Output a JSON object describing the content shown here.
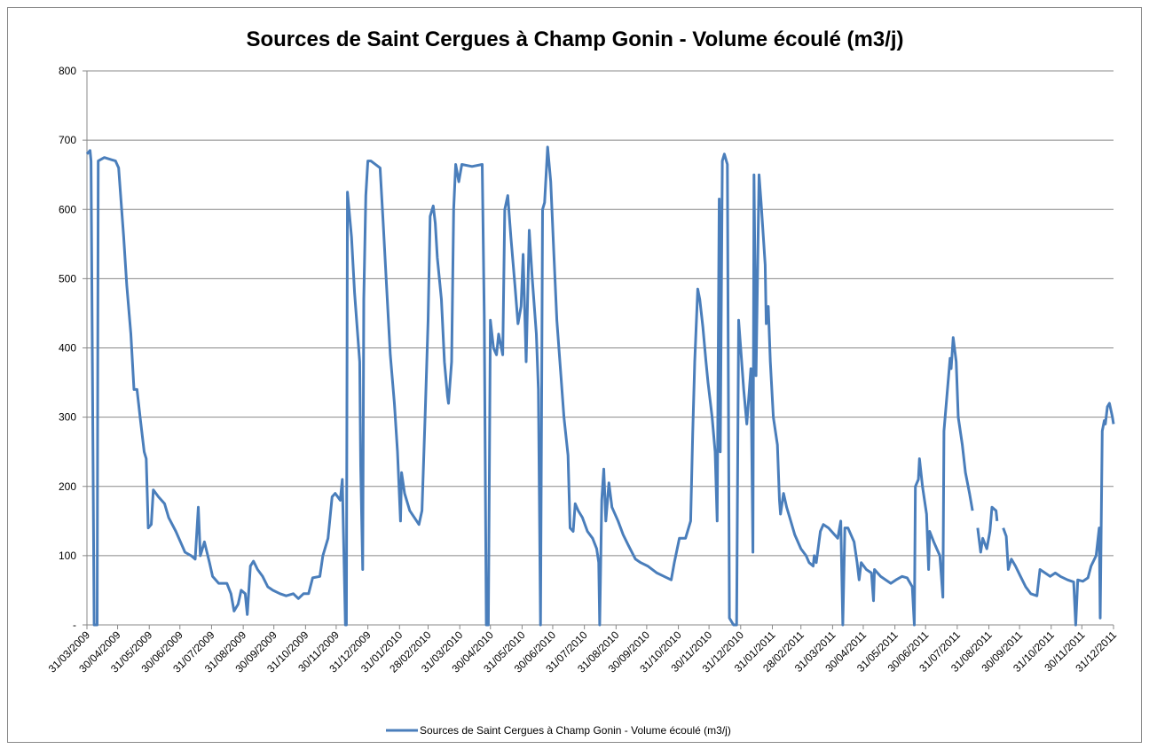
{
  "chart_data": {
    "type": "line",
    "title": "Sources de Saint Cergues à Champ Gonin - Volume écoulé (m3/j)",
    "xlim": [
      "31/03/2009",
      "31/12/2011"
    ],
    "xticks": [
      "31/03/2009",
      "30/04/2009",
      "31/05/2009",
      "30/06/2009",
      "31/07/2009",
      "31/08/2009",
      "30/09/2009",
      "31/10/2009",
      "30/11/2009",
      "31/12/2009",
      "31/01/2010",
      "28/02/2010",
      "31/03/2010",
      "30/04/2010",
      "31/05/2010",
      "30/06/2010",
      "31/07/2010",
      "31/08/2010",
      "30/09/2010",
      "31/10/2010",
      "30/11/2010",
      "31/12/2010",
      "31/01/2011",
      "28/02/2011",
      "31/03/2011",
      "30/04/2011",
      "31/05/2011",
      "30/06/2011",
      "31/07/2011",
      "31/08/2011",
      "30/09/2011",
      "31/10/2011",
      "30/11/2011",
      "31/12/2011"
    ],
    "ylim": [
      0,
      800
    ],
    "yticks": [
      {
        "value": 0,
        "label": "-"
      },
      100,
      200,
      300,
      400,
      500,
      600,
      700,
      800
    ],
    "grid": true,
    "legend": "bottom",
    "x": [
      "31/03/2009",
      "03/04/2009",
      "04/04/2009",
      "07/04/2009",
      "10/04/2009",
      "11/04/2009",
      "17/04/2009",
      "28/04/2009",
      "01/05/2009",
      "06/05/2009",
      "09/05/2009",
      "13/05/2009",
      "16/05/2009",
      "19/05/2009",
      "22/05/2009",
      "26/05/2009",
      "28/05/2009",
      "30/05/2009",
      "02/06/2009",
      "04/06/2009",
      "09/06/2009",
      "15/06/2009",
      "19/06/2009",
      "26/06/2009",
      "02/07/2009",
      "05/07/2009",
      "11/07/2009",
      "15/07/2009",
      "18/07/2009",
      "20/07/2009",
      "24/07/2009",
      "29/07/2009",
      "01/08/2009",
      "07/08/2009",
      "15/08/2009",
      "19/08/2009",
      "22/08/2009",
      "26/08/2009",
      "29/08/2009",
      "02/09/2009",
      "04/09/2009",
      "07/09/2009",
      "10/09/2009",
      "14/09/2009",
      "19/09/2009",
      "24/09/2009",
      "29/09/2009",
      "06/10/2009",
      "12/10/2009",
      "19/10/2009",
      "24/10/2009",
      "29/10/2009",
      "03/11/2009",
      "07/11/2009",
      "14/11/2009",
      "17/11/2009",
      "22/11/2009",
      "26/11/2009",
      "29/11/2009",
      "04/12/2009",
      "06/12/2009",
      "09/12/2009",
      "10/12/2009",
      "11/12/2009",
      "15/12/2009",
      "18/12/2009",
      "23/12/2009",
      "24/12/2009",
      "26/12/2009",
      "27/12/2009",
      "29/12/2009",
      "31/12/2009",
      "03/01/2010",
      "12/01/2010",
      "15/01/2010",
      "19/01/2010",
      "22/01/2010",
      "26/01/2010",
      "29/01/2010",
      "01/02/2010",
      "02/02/2010",
      "05/02/2010",
      "10/02/2010",
      "19/02/2010",
      "22/02/2010",
      "25/02/2010",
      "28/02/2010",
      "02/03/2010",
      "05/03/2010",
      "07/03/2010",
      "09/03/2010",
      "13/03/2010",
      "16/03/2010",
      "19/03/2010",
      "20/03/2010",
      "23/03/2010",
      "25/03/2010",
      "27/03/2010",
      "30/03/2010",
      "02/04/2010",
      "12/04/2010",
      "22/04/2010",
      "24/04/2010",
      "26/04/2010",
      "28/04/2010",
      "30/04/2010",
      "03/05/2010",
      "06/05/2010",
      "08/05/2010",
      "12/05/2010",
      "14/05/2010",
      "17/05/2010",
      "20/05/2010",
      "24/05/2010",
      "27/05/2010",
      "30/05/2010",
      "01/06/2010",
      "04/06/2010",
      "07/06/2010",
      "10/06/2010",
      "14/06/2010",
      "16/06/2010",
      "18/06/2010",
      "20/06/2010",
      "22/06/2010",
      "25/06/2010",
      "28/06/2010",
      "01/07/2010",
      "04/07/2010",
      "08/07/2010",
      "11/07/2010",
      "15/07/2010",
      "17/07/2010",
      "20/07/2010",
      "22/07/2010",
      "25/07/2010",
      "29/07/2010",
      "03/08/2010",
      "08/08/2010",
      "12/08/2010",
      "14/08/2010",
      "15/08/2010",
      "17/08/2010",
      "19/08/2010",
      "21/08/2010",
      "24/08/2010",
      "27/08/2010",
      "02/09/2010",
      "07/09/2010",
      "12/09/2010",
      "19/09/2010",
      "24/09/2010",
      "01/10/2010",
      "10/10/2010",
      "17/10/2010",
      "24/10/2010",
      "27/10/2010",
      "01/11/2010",
      "07/11/2010",
      "10/11/2010",
      "12/11/2010",
      "14/11/2010",
      "16/11/2010",
      "19/11/2010",
      "21/11/2010",
      "24/11/2010",
      "27/11/2010",
      "29/11/2010",
      "03/12/2010",
      "06/12/2010",
      "08/12/2010",
      "10/12/2010",
      "11/12/2010",
      "13/12/2010",
      "15/12/2010",
      "18/12/2010",
      "20/12/2010",
      "24/12/2010",
      "27/12/2010",
      "29/12/2010",
      "31/12/2010",
      "03/01/2011",
      "06/01/2011",
      "10/01/2011",
      "12/01/2011",
      "13/01/2011",
      "15/01/2011",
      "18/01/2011",
      "20/01/2011",
      "24/01/2011",
      "25/01/2011",
      "27/01/2011",
      "29/01/2011",
      "01/02/2011",
      "05/02/2011",
      "07/02/2011",
      "08/02/2011",
      "11/02/2011",
      "14/02/2011",
      "17/02/2011",
      "22/02/2011",
      "28/02/2011",
      "05/03/2011",
      "08/03/2011",
      "12/03/2011",
      "13/03/2011",
      "15/03/2011",
      "19/03/2011",
      "22/03/2011",
      "27/03/2011",
      "02/04/2011",
      "05/04/2011",
      "08/04/2011",
      "10/04/2011",
      "12/04/2011",
      "15/04/2011",
      "21/04/2011",
      "24/04/2011",
      "26/04/2011",
      "28/04/2011",
      "03/05/2011",
      "08/05/2011",
      "10/05/2011",
      "11/05/2011",
      "17/05/2011",
      "22/05/2011",
      "27/05/2011",
      "01/06/2011",
      "07/06/2011",
      "12/06/2011",
      "17/06/2011",
      "19/06/2011",
      "20/06/2011",
      "23/06/2011",
      "24/06/2011",
      "27/06/2011",
      "01/07/2011",
      "03/07/2011",
      "04/07/2011",
      "08/07/2011",
      "11/07/2011",
      "14/07/2011",
      "17/07/2011",
      "18/07/2011",
      "22/07/2011",
      "24/07/2011",
      "25/07/2011",
      "27/07/2011",
      "30/07/2011",
      "01/08/2011",
      "05/08/2011",
      "08/08/2011",
      "12/08/2011",
      "15/08/2011",
      "17/08/2011",
      "20/08/2011",
      "23/08/2011",
      "25/08/2011",
      "29/08/2011",
      "01/09/2011",
      "03/09/2011",
      "07/09/2011",
      "08/09/2011",
      "10/09/2011",
      "14/09/2011",
      "17/09/2011",
      "19/09/2011",
      "22/09/2011",
      "26/09/2011",
      "01/10/2011",
      "06/10/2011",
      "11/10/2011",
      "17/10/2011",
      "20/10/2011",
      "25/10/2011",
      "30/10/2011",
      "04/11/2011",
      "09/11/2011",
      "16/11/2011",
      "22/11/2011",
      "24/11/2011",
      "26/11/2011",
      "01/12/2011",
      "06/12/2011",
      "09/12/2011",
      "14/12/2011",
      "17/12/2011",
      "18/12/2011",
      "20/12/2011",
      "22/12/2011",
      "23/12/2011",
      "25/12/2011",
      "27/12/2011",
      "30/12/2011",
      "31/12/2011"
    ],
    "series": [
      {
        "name": "Sources de Saint Cergues à Champ Gonin - Volume écoulé (m3/j)",
        "color": "#4a7ebb",
        "values": [
          680,
          685,
          670,
          0,
          0,
          670,
          675,
          670,
          660,
          560,
          490,
          420,
          340,
          340,
          300,
          250,
          240,
          140,
          145,
          195,
          185,
          175,
          155,
          135,
          115,
          105,
          100,
          95,
          170,
          100,
          120,
          90,
          70,
          60,
          60,
          45,
          20,
          30,
          50,
          45,
          15,
          85,
          92,
          80,
          70,
          55,
          50,
          45,
          42,
          45,
          38,
          45,
          45,
          68,
          70,
          100,
          125,
          185,
          190,
          180,
          210,
          0,
          0,
          625,
          560,
          480,
          380,
          230,
          80,
          470,
          620,
          670,
          670,
          660,
          580,
          470,
          390,
          320,
          250,
          150,
          220,
          190,
          165,
          145,
          165,
          300,
          440,
          590,
          605,
          580,
          530,
          470,
          380,
          330,
          320,
          380,
          600,
          665,
          640,
          665,
          662,
          665,
          445,
          0,
          0,
          440,
          400,
          390,
          420,
          390,
          600,
          620,
          560,
          490,
          435,
          460,
          535,
          380,
          570,
          500,
          420,
          340,
          0,
          600,
          610,
          690,
          640,
          540,
          440,
          360,
          300,
          245,
          140,
          135,
          175,
          165,
          155,
          135,
          125,
          110,
          90,
          0,
          180,
          225,
          150,
          205,
          170,
          150,
          130,
          115,
          95,
          90,
          85,
          75,
          70,
          65,
          90,
          125,
          125,
          140,
          150,
          275,
          380,
          485,
          470,
          430,
          380,
          350,
          300,
          250,
          150,
          615,
          250,
          670,
          680,
          665,
          10,
          0,
          0,
          440,
          400,
          340,
          290,
          370,
          105,
          650,
          360,
          650,
          610,
          520,
          435,
          460,
          380,
          300,
          260,
          180,
          160,
          190,
          170,
          155,
          130,
          110,
          100,
          90,
          85,
          100,
          90,
          135,
          145,
          140,
          130,
          125,
          150,
          0,
          140,
          140,
          120,
          90,
          65,
          90,
          80,
          75,
          35,
          80,
          70,
          65,
          60,
          65,
          70,
          68,
          55,
          0,
          200,
          210,
          240,
          200,
          160,
          80,
          135,
          120,
          110,
          100,
          40,
          280,
          350,
          385,
          370,
          415,
          380,
          300,
          260,
          220,
          190,
          165,
          null,
          140,
          105,
          125,
          110,
          135,
          170,
          165,
          150,
          null,
          140,
          128,
          80,
          95,
          85,
          70,
          55,
          45,
          42,
          80,
          75,
          70,
          75,
          70,
          65,
          62,
          0,
          65,
          63,
          68,
          85,
          100,
          140,
          10,
          280,
          295,
          290,
          315,
          320,
          300,
          290
        ]
      }
    ]
  }
}
